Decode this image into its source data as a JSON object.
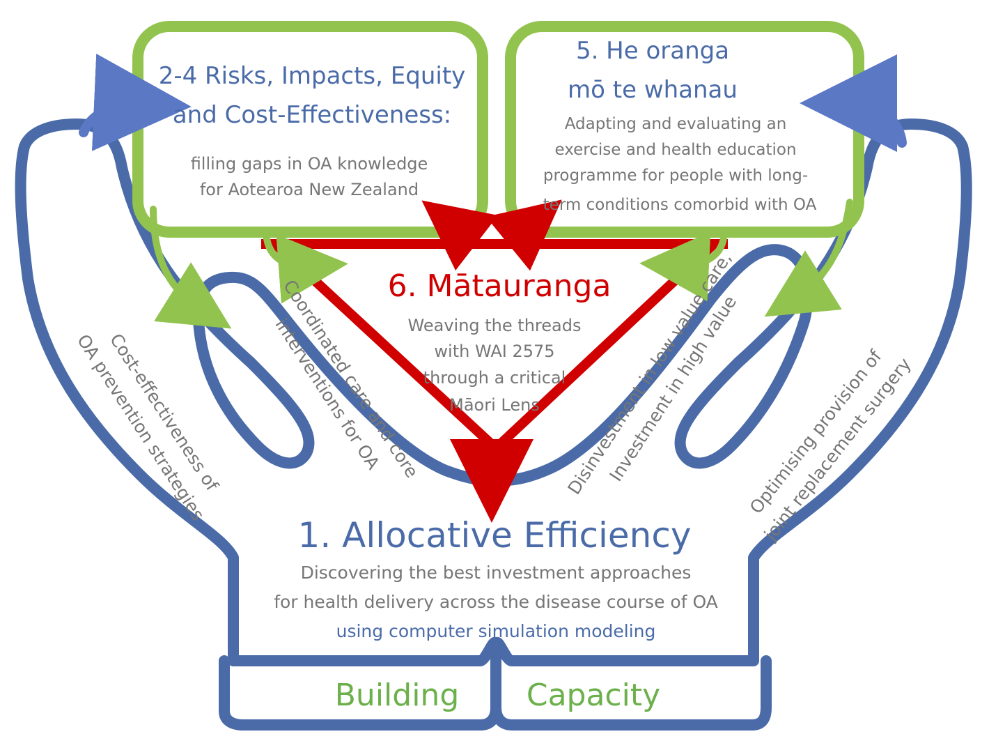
{
  "box_left": {
    "title_lines": [
      "2-4 Risks, Impacts, Equity",
      "and Cost-Effectiveness:"
    ],
    "desc_lines": [
      "filling gaps in OA knowledge",
      "for Aotearoa New Zealand"
    ]
  },
  "box_right": {
    "title_lines": [
      "5. He oranga",
      "mō te whanau"
    ],
    "desc_lines": [
      "Adapting and evaluating an",
      "exercise and health education",
      "programme for people with long-",
      "term conditions comorbid with OA"
    ]
  },
  "triangle": {
    "title": "6. Mātauranga",
    "desc_lines": [
      "Weaving the threads",
      "with WAI 2575",
      "through a critical",
      "Māori Lens"
    ]
  },
  "fingers": {
    "left_outer": [
      "Cost-effectiveness of",
      "OA prevention strategies"
    ],
    "left_inner": [
      "Coordinated care and core",
      "interventions for OA"
    ],
    "right_inner": [
      "Disinvestment in low value care,",
      "Investment in high value"
    ],
    "right_outer": [
      "Optimising provision of",
      "joint replacement surgery"
    ]
  },
  "palm": {
    "title": "1. Allocative Efficiency",
    "desc_lines": [
      "Discovering the best investment approaches",
      "for health delivery across the disease course of OA"
    ],
    "method_line": "using computer simulation modeling"
  },
  "wrist": {
    "left_label": "Building",
    "right_label": "Capacity"
  },
  "colors": {
    "hand_blue": "#4A6BA8",
    "box_green": "#92C34E",
    "triangle_red": "#D00000",
    "arrow_blue": "#5B78C4",
    "text_grey": "#767676",
    "label_green": "#6CB04B"
  }
}
